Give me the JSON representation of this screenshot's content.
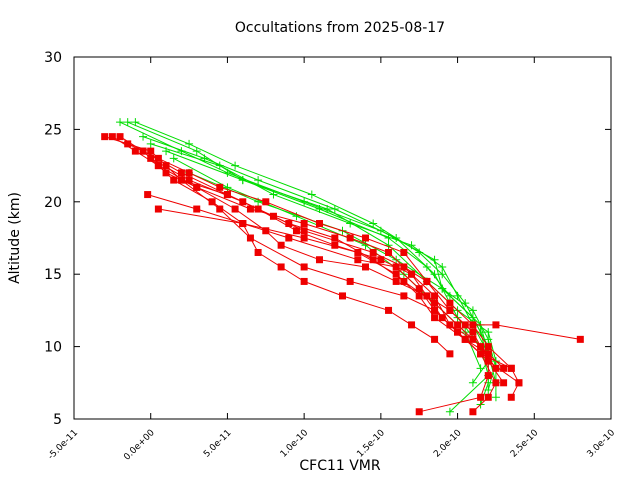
{
  "chart_data": {
    "type": "line",
    "title": "Occultations from 2025-08-17",
    "xlabel": "CFC11 VMR",
    "ylabel": "Altitude (km)",
    "xlim": [
      -5e-11,
      3e-10
    ],
    "ylim": [
      5,
      30
    ],
    "x_ticks": [
      {
        "value": -5e-11,
        "label": "-5.0e-11"
      },
      {
        "value": 0,
        "label": "0.0e+00"
      },
      {
        "value": 5e-11,
        "label": "5.0e-11"
      },
      {
        "value": 1e-10,
        "label": "1.0e-10"
      },
      {
        "value": 1.5e-10,
        "label": "1.5e-10"
      },
      {
        "value": 2e-10,
        "label": "2.0e-10"
      },
      {
        "value": 2.5e-10,
        "label": "2.5e-10"
      },
      {
        "value": 3e-10,
        "label": "3.0e-10"
      }
    ],
    "y_ticks": [
      {
        "value": 5,
        "label": "5"
      },
      {
        "value": 10,
        "label": "10"
      },
      {
        "value": 15,
        "label": "15"
      },
      {
        "value": 20,
        "label": "20"
      },
      {
        "value": 25,
        "label": "25"
      },
      {
        "value": 30,
        "label": "30"
      }
    ],
    "grid": false,
    "legend": "none",
    "series": [
      {
        "marker": "plus",
        "color": "#00dd00",
        "points": [
          [
            -2e-11,
            25.5
          ],
          [
            2e-11,
            23.5
          ],
          [
            5e-11,
            22.0
          ],
          [
            1e-10,
            20.0
          ],
          [
            1.5e-10,
            18.0
          ],
          [
            1.85e-10,
            16.0
          ],
          [
            1.9e-10,
            14.0
          ],
          [
            2.1e-10,
            12.5
          ],
          [
            2.2e-10,
            10.5
          ],
          [
            2.25e-10,
            8.5
          ],
          [
            2.25e-10,
            6.5
          ]
        ]
      },
      {
        "marker": "plus",
        "color": "#00dd00",
        "points": [
          [
            -1.5e-11,
            25.5
          ],
          [
            3e-11,
            23.5
          ],
          [
            6e-11,
            21.5
          ],
          [
            1.1e-10,
            19.5
          ],
          [
            1.55e-10,
            17.5
          ],
          [
            1.8e-10,
            15.5
          ],
          [
            1.95e-10,
            13.5
          ],
          [
            2.15e-10,
            11.5
          ],
          [
            2.2e-10,
            9.5
          ],
          [
            2.2e-10,
            7.5
          ],
          [
            2.15e-10,
            6.0
          ]
        ]
      },
      {
        "marker": "plus",
        "color": "#00dd00",
        "points": [
          [
            -1e-11,
            25.5
          ],
          [
            2.5e-11,
            24.0
          ],
          [
            5.5e-11,
            22.5
          ],
          [
            1.05e-10,
            20.5
          ],
          [
            1.45e-10,
            18.5
          ],
          [
            1.75e-10,
            16.5
          ],
          [
            1.9e-10,
            15.0
          ],
          [
            2.05e-10,
            13.0
          ],
          [
            2.15e-10,
            11.0
          ],
          [
            2.2e-10,
            9.0
          ],
          [
            2.1e-10,
            7.5
          ]
        ]
      },
      {
        "marker": "plus",
        "color": "#00dd00",
        "points": [
          [
            -5e-12,
            24.5
          ],
          [
            3.5e-11,
            23.0
          ],
          [
            7e-11,
            21.5
          ],
          [
            1.2e-10,
            19.5
          ],
          [
            1.6e-10,
            17.5
          ],
          [
            1.85e-10,
            15.0
          ],
          [
            2e-10,
            12.0
          ],
          [
            2.15e-10,
            10.0
          ],
          [
            2.2e-10,
            8.0
          ],
          [
            1.95e-10,
            5.5
          ]
        ]
      },
      {
        "marker": "plus",
        "color": "#00dd00",
        "points": [
          [
            0.0,
            24.0
          ],
          [
            4.5e-11,
            22.5
          ],
          [
            8e-11,
            20.5
          ],
          [
            1.3e-10,
            18.5
          ],
          [
            1.7e-10,
            17.0
          ],
          [
            1.9e-10,
            15.5
          ],
          [
            2e-10,
            13.5
          ],
          [
            2.1e-10,
            11.5
          ],
          [
            2.2e-10,
            9.5
          ],
          [
            2.25e-10,
            7.5
          ]
        ]
      },
      {
        "marker": "plus",
        "color": "#00dd00",
        "points": [
          [
            1e-11,
            23.5
          ],
          [
            6e-11,
            21.5
          ],
          [
            1.15e-10,
            19.5
          ],
          [
            1.55e-10,
            17.0
          ],
          [
            1.8e-10,
            14.5
          ],
          [
            2e-10,
            12.5
          ],
          [
            2.2e-10,
            11.0
          ],
          [
            2.25e-10,
            9.0
          ],
          [
            2.2e-10,
            7.0
          ]
        ]
      },
      {
        "marker": "plus",
        "color": "#00dd00",
        "points": [
          [
            1.5e-11,
            23.0
          ],
          [
            5e-11,
            21.0
          ],
          [
            9.5e-11,
            19.0
          ],
          [
            1.4e-10,
            17.0
          ],
          [
            1.65e-10,
            15.0
          ],
          [
            1.85e-10,
            13.0
          ],
          [
            2.05e-10,
            11.0
          ],
          [
            2.15e-10,
            8.5
          ]
        ]
      },
      {
        "marker": "plus",
        "color": "#00dd00",
        "points": [
          [
            2.5e-11,
            22.0
          ],
          [
            7e-11,
            20.0
          ],
          [
            1.25e-10,
            18.0
          ],
          [
            1.6e-10,
            16.0
          ],
          [
            1.9e-10,
            14.0
          ],
          [
            2.1e-10,
            12.0
          ],
          [
            2.2e-10,
            10.0
          ]
        ]
      },
      {
        "marker": "square",
        "color": "#ee0000",
        "points": [
          [
            -3e-11,
            24.5
          ],
          [
            0.0,
            23.5
          ],
          [
            1e-11,
            22.5
          ],
          [
            2e-11,
            21.5
          ],
          [
            5e-11,
            20.5
          ],
          [
            8e-11,
            19.0
          ],
          [
            1e-10,
            18.0
          ],
          [
            1.45e-10,
            16.5
          ],
          [
            1.65e-10,
            15.5
          ],
          [
            1.8e-10,
            14.5
          ],
          [
            1.95e-10,
            13.0
          ],
          [
            2.1e-10,
            11.5
          ],
          [
            2.2e-10,
            10.0
          ],
          [
            2.35e-10,
            8.5
          ],
          [
            2.4e-10,
            7.5
          ],
          [
            2.35e-10,
            6.5
          ]
        ]
      },
      {
        "marker": "square",
        "color": "#ee0000",
        "points": [
          [
            -2.5e-11,
            24.5
          ],
          [
            -1e-11,
            23.5
          ],
          [
            5e-12,
            22.5
          ],
          [
            1.5e-11,
            21.5
          ],
          [
            4e-11,
            20.0
          ],
          [
            6e-11,
            18.5
          ],
          [
            9e-11,
            17.5
          ],
          [
            1.35e-10,
            16.0
          ],
          [
            1.6e-10,
            15.5
          ],
          [
            1.75e-10,
            14.0
          ],
          [
            1.85e-10,
            12.5
          ],
          [
            2e-10,
            11.0
          ],
          [
            2.15e-10,
            9.5
          ],
          [
            2.25e-10,
            7.5
          ],
          [
            2.2e-10,
            6.5
          ],
          [
            2.1e-10,
            5.5
          ]
        ]
      },
      {
        "marker": "square",
        "color": "#ee0000",
        "points": [
          [
            -2e-11,
            24.5
          ],
          [
            -5e-12,
            23.5
          ],
          [
            1e-11,
            22.0
          ],
          [
            3e-11,
            21.0
          ],
          [
            6.5e-11,
            19.5
          ],
          [
            1e-10,
            18.5
          ],
          [
            1.3e-10,
            17.5
          ],
          [
            1.55e-10,
            16.5
          ],
          [
            1.7e-10,
            15.0
          ],
          [
            1.8e-10,
            13.5
          ],
          [
            1.9e-10,
            12.0
          ],
          [
            2.05e-10,
            10.5
          ],
          [
            2.2e-10,
            9.0
          ],
          [
            2.3e-10,
            7.5
          ]
        ]
      },
      {
        "marker": "square",
        "color": "#ee0000",
        "points": [
          [
            -1.5e-11,
            24.0
          ],
          [
            5e-12,
            23.0
          ],
          [
            2.5e-11,
            22.0
          ],
          [
            4.5e-11,
            21.0
          ],
          [
            7.5e-11,
            20.0
          ],
          [
            1.1e-10,
            18.5
          ],
          [
            1.4e-10,
            17.5
          ],
          [
            1.65e-10,
            16.5
          ],
          [
            1.8e-10,
            14.5
          ],
          [
            1.95e-10,
            12.5
          ],
          [
            2.1e-10,
            11.0
          ],
          [
            2.2e-10,
            9.0
          ],
          [
            2.4e-10,
            7.5
          ]
        ]
      },
      {
        "marker": "square",
        "color": "#ee0000",
        "points": [
          [
            -5e-12,
            23.5
          ],
          [
            2e-11,
            22.0
          ],
          [
            5e-11,
            20.5
          ],
          [
            7e-11,
            19.5
          ],
          [
            9.5e-11,
            18.0
          ],
          [
            1.2e-10,
            17.0
          ],
          [
            1.5e-10,
            16.0
          ],
          [
            1.7e-10,
            15.0
          ],
          [
            1.85e-10,
            13.5
          ],
          [
            1.95e-10,
            11.5
          ],
          [
            2.1e-10,
            10.5
          ],
          [
            2.2e-10,
            9.5
          ],
          [
            2.3e-10,
            8.5
          ]
        ]
      },
      {
        "marker": "square",
        "color": "#ee0000",
        "points": [
          [
            0.0,
            23.0
          ],
          [
            2.5e-11,
            21.5
          ],
          [
            6e-11,
            20.0
          ],
          [
            9e-11,
            18.5
          ],
          [
            1.2e-10,
            17.5
          ],
          [
            1.45e-10,
            16.0
          ],
          [
            1.65e-10,
            14.5
          ],
          [
            1.85e-10,
            13.0
          ],
          [
            2e-10,
            11.5
          ],
          [
            2.15e-10,
            10.0
          ],
          [
            2.25e-10,
            8.5
          ]
        ]
      },
      {
        "marker": "square",
        "color": "#ee0000",
        "points": [
          [
            5e-12,
            22.5
          ],
          [
            3e-11,
            21.0
          ],
          [
            5.5e-11,
            19.5
          ],
          [
            7.5e-11,
            18.0
          ],
          [
            8.5e-11,
            17.0
          ],
          [
            1.1e-10,
            16.0
          ],
          [
            1.4e-10,
            15.5
          ],
          [
            1.6e-10,
            14.5
          ],
          [
            1.8e-10,
            13.5
          ],
          [
            1.95e-10,
            12.5
          ],
          [
            2.05e-10,
            11.5
          ],
          [
            2.25e-10,
            11.5
          ],
          [
            2.8e-10,
            10.5
          ]
        ]
      },
      {
        "marker": "square",
        "color": "#ee0000",
        "points": [
          [
            -2e-12,
            20.5
          ],
          [
            3e-11,
            19.5
          ],
          [
            6e-11,
            18.5
          ],
          [
            7e-11,
            16.5
          ],
          [
            8.5e-11,
            15.5
          ],
          [
            1e-10,
            14.5
          ],
          [
            1.25e-10,
            13.5
          ],
          [
            1.55e-10,
            12.5
          ],
          [
            1.7e-10,
            11.5
          ],
          [
            1.85e-10,
            10.5
          ],
          [
            1.95e-10,
            9.5
          ]
        ]
      },
      {
        "marker": "square",
        "color": "#ee0000",
        "points": [
          [
            5e-12,
            19.5
          ],
          [
            6e-11,
            18.5
          ],
          [
            1e-10,
            17.5
          ],
          [
            1.35e-10,
            16.5
          ],
          [
            1.6e-10,
            15.0
          ],
          [
            1.75e-10,
            13.5
          ],
          [
            1.85e-10,
            12.0
          ],
          [
            2.05e-10,
            10.5
          ],
          [
            2.2e-10,
            9.5
          ],
          [
            2.2e-10,
            8.0
          ],
          [
            2.15e-10,
            6.5
          ],
          [
            1.75e-10,
            5.5
          ]
        ]
      },
      {
        "marker": "square",
        "color": "#ee0000",
        "points": [
          [
            2e-11,
            21.5
          ],
          [
            4.5e-11,
            19.5
          ],
          [
            6.5e-11,
            17.5
          ],
          [
            1e-10,
            15.5
          ],
          [
            1.3e-10,
            14.5
          ],
          [
            1.65e-10,
            13.5
          ],
          [
            1.85e-10,
            12.5
          ],
          [
            2e-10,
            11.0
          ],
          [
            2.15e-10,
            9.5
          ],
          [
            2.35e-10,
            8.5
          ]
        ]
      }
    ]
  }
}
